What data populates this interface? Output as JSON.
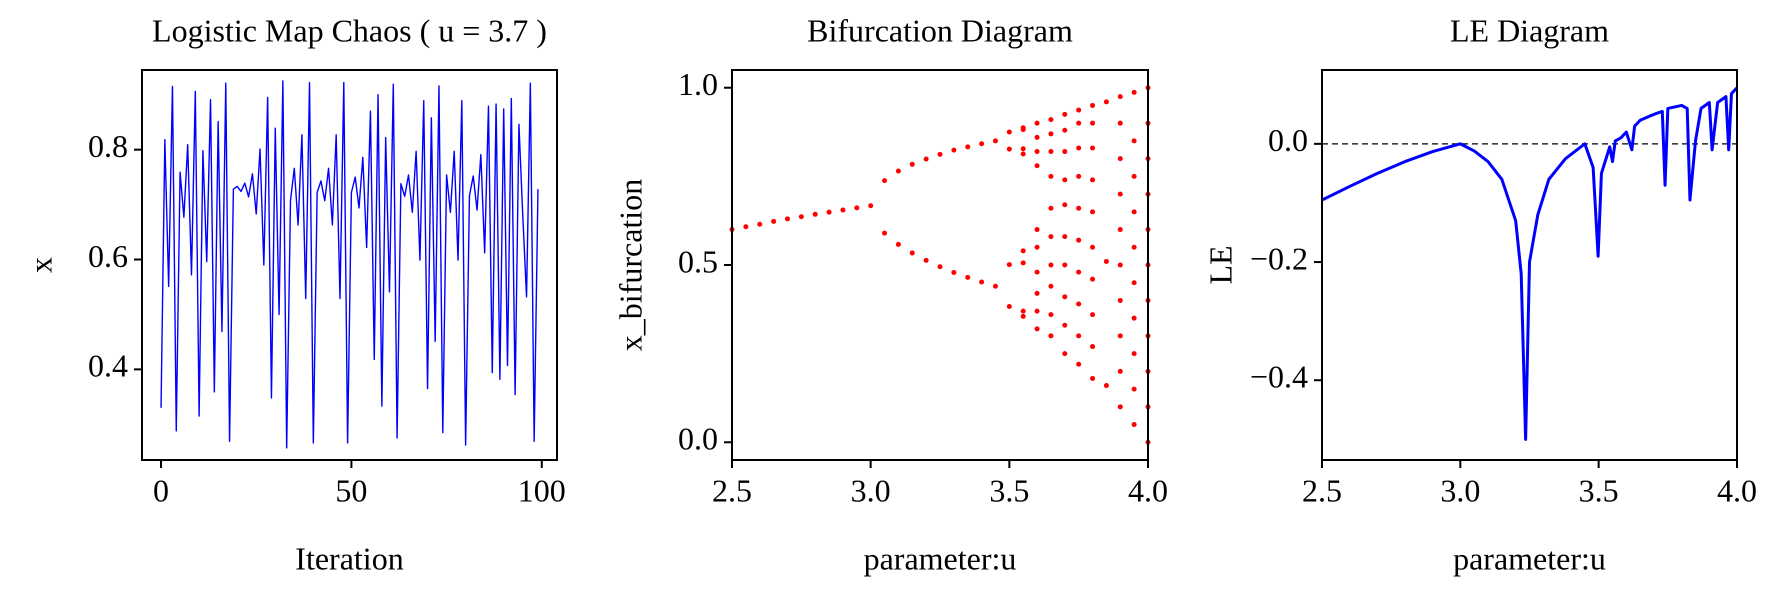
{
  "chart_data": [
    {
      "type": "line",
      "title": "Logistic Map Chaos ( u = 3.7 )",
      "xlabel": "Iteration",
      "ylabel": "x",
      "color": "#0000ff",
      "x": [
        0,
        1,
        2,
        3,
        4,
        5,
        6,
        7,
        8,
        9,
        10,
        11,
        12,
        13,
        14,
        15,
        16,
        17,
        18,
        19,
        20,
        21,
        22,
        23,
        24,
        25,
        26,
        27,
        28,
        29,
        30,
        31,
        32,
        33,
        34,
        35,
        36,
        37,
        38,
        39,
        40,
        41,
        42,
        43,
        44,
        45,
        46,
        47,
        48,
        49,
        50,
        51,
        52,
        53,
        54,
        55,
        56,
        57,
        58,
        59,
        60,
        61,
        62,
        63,
        64,
        65,
        66,
        67,
        68,
        69,
        70,
        71,
        72,
        73,
        74,
        75,
        76,
        77,
        78,
        79,
        80,
        81,
        82,
        83,
        84,
        85,
        86,
        87,
        88,
        89,
        90,
        91,
        92,
        93,
        94,
        95,
        96,
        97,
        98,
        99
      ],
      "values": [
        0.33,
        0.818,
        0.551,
        0.915,
        0.288,
        0.759,
        0.677,
        0.809,
        0.572,
        0.906,
        0.315,
        0.798,
        0.596,
        0.891,
        0.359,
        0.851,
        0.469,
        0.921,
        0.269,
        0.728,
        0.733,
        0.724,
        0.739,
        0.714,
        0.756,
        0.683,
        0.801,
        0.59,
        0.895,
        0.348,
        0.839,
        0.5,
        0.925,
        0.257,
        0.707,
        0.766,
        0.663,
        0.827,
        0.529,
        0.922,
        0.266,
        0.722,
        0.743,
        0.707,
        0.766,
        0.663,
        0.827,
        0.529,
        0.922,
        0.266,
        0.722,
        0.75,
        0.694,
        0.786,
        0.622,
        0.87,
        0.418,
        0.9,
        0.333,
        0.822,
        0.541,
        0.919,
        0.275,
        0.738,
        0.715,
        0.754,
        0.686,
        0.797,
        0.599,
        0.889,
        0.365,
        0.858,
        0.451,
        0.916,
        0.285,
        0.754,
        0.686,
        0.797,
        0.599,
        0.889,
        0.262,
        0.716,
        0.752,
        0.69,
        0.791,
        0.612,
        0.879,
        0.394,
        0.883,
        0.382,
        0.874,
        0.407,
        0.893,
        0.354,
        0.846,
        0.682,
        0.532,
        0.921,
        0.269,
        0.728
      ],
      "xlim": [
        -5,
        104
      ],
      "ylim": [
        0.235,
        0.945
      ],
      "xticks": [
        0,
        50,
        100
      ],
      "yticks": [
        0.4,
        0.6,
        0.8
      ]
    },
    {
      "type": "scatter",
      "title": "Bifurcation Diagram",
      "xlabel": "parameter:u",
      "ylabel": "x_bifurcation",
      "color": "#ff0000",
      "x": [
        2.5,
        2.55,
        2.6,
        2.65,
        2.7,
        2.75,
        2.8,
        2.85,
        2.9,
        2.95,
        3.0,
        3.05,
        3.05,
        3.1,
        3.1,
        3.15,
        3.15,
        3.2,
        3.2,
        3.25,
        3.25,
        3.3,
        3.3,
        3.35,
        3.35,
        3.4,
        3.4,
        3.45,
        3.45,
        3.5,
        3.5,
        3.5,
        3.5,
        3.55,
        3.55,
        3.55,
        3.55,
        3.55,
        3.55,
        3.55,
        3.55,
        3.6,
        3.6,
        3.6,
        3.6,
        3.6,
        3.6,
        3.6,
        3.6,
        3.6,
        3.6,
        3.65,
        3.65,
        3.65,
        3.65,
        3.65,
        3.65,
        3.65,
        3.65,
        3.65,
        3.65,
        3.7,
        3.7,
        3.7,
        3.7,
        3.7,
        3.7,
        3.7,
        3.7,
        3.7,
        3.7,
        3.75,
        3.75,
        3.75,
        3.75,
        3.75,
        3.75,
        3.75,
        3.75,
        3.75,
        3.75,
        3.8,
        3.8,
        3.8,
        3.8,
        3.8,
        3.8,
        3.8,
        3.8,
        3.8,
        3.8,
        3.85,
        3.85,
        3.85,
        3.9,
        3.9,
        3.9,
        3.9,
        3.9,
        3.9,
        3.9,
        3.9,
        3.9,
        3.9,
        3.95,
        3.95,
        3.95,
        3.95,
        3.95,
        3.95,
        3.95,
        3.95,
        3.95,
        3.95,
        4.0,
        4.0,
        4.0,
        4.0,
        4.0,
        4.0,
        4.0,
        4.0,
        4.0,
        4.0,
        4.0
      ],
      "values": [
        0.6,
        0.608,
        0.615,
        0.623,
        0.63,
        0.636,
        0.643,
        0.649,
        0.655,
        0.661,
        0.667,
        0.738,
        0.59,
        0.765,
        0.558,
        0.784,
        0.534,
        0.799,
        0.513,
        0.812,
        0.495,
        0.824,
        0.479,
        0.833,
        0.465,
        0.842,
        0.452,
        0.85,
        0.44,
        0.875,
        0.383,
        0.827,
        0.501,
        0.887,
        0.355,
        0.813,
        0.54,
        0.882,
        0.37,
        0.828,
        0.506,
        0.32,
        0.37,
        0.42,
        0.48,
        0.55,
        0.6,
        0.78,
        0.82,
        0.86,
        0.9,
        0.3,
        0.36,
        0.44,
        0.5,
        0.58,
        0.66,
        0.75,
        0.82,
        0.87,
        0.91,
        0.25,
        0.33,
        0.41,
        0.5,
        0.58,
        0.67,
        0.74,
        0.82,
        0.88,
        0.925,
        0.22,
        0.3,
        0.39,
        0.48,
        0.57,
        0.66,
        0.75,
        0.83,
        0.9,
        0.937,
        0.18,
        0.27,
        0.36,
        0.46,
        0.55,
        0.65,
        0.74,
        0.83,
        0.9,
        0.95,
        0.16,
        0.51,
        0.96,
        0.1,
        0.2,
        0.3,
        0.4,
        0.5,
        0.6,
        0.7,
        0.8,
        0.9,
        0.975,
        0.05,
        0.15,
        0.25,
        0.35,
        0.45,
        0.55,
        0.65,
        0.75,
        0.85,
        0.987,
        0,
        0.1,
        0.2,
        0.3,
        0.4,
        0.5,
        0.6,
        0.7,
        0.8,
        0.9,
        1
      ],
      "xlim": [
        2.5,
        4.0
      ],
      "ylim": [
        -0.05,
        1.05
      ],
      "xticks": [
        2.5,
        {
          "value": 3,
          "label": "3.0"
        },
        3.5,
        {
          "value": 4,
          "label": "4.0"
        }
      ],
      "yticks": [
        {
          "value": 0,
          "label": "0.0"
        },
        0.5,
        {
          "value": 1,
          "label": "1.0"
        }
      ]
    },
    {
      "type": "line",
      "title": "LE Diagram",
      "xlabel": "parameter:u",
      "ylabel": "LE",
      "color": "#0000ff",
      "hline": 0,
      "x": [
        2.5,
        2.6,
        2.7,
        2.8,
        2.9,
        3.0,
        3.05,
        3.1,
        3.15,
        3.2,
        3.22,
        3.236,
        3.25,
        3.28,
        3.32,
        3.38,
        3.45,
        3.48,
        3.498,
        3.51,
        3.54,
        3.55,
        3.56,
        3.58,
        3.6,
        3.62,
        3.63,
        3.65,
        3.7,
        3.73,
        3.74,
        3.75,
        3.8,
        3.82,
        3.83,
        3.85,
        3.87,
        3.9,
        3.91,
        3.93,
        3.96,
        3.97,
        3.98,
        4.0
      ],
      "values": [
        -0.095,
        -0.072,
        -0.05,
        -0.03,
        -0.013,
        0,
        -0.012,
        -0.03,
        -0.06,
        -0.13,
        -0.22,
        -0.5,
        -0.2,
        -0.12,
        -0.06,
        -0.025,
        0,
        -0.04,
        -0.19,
        -0.05,
        -0.005,
        -0.03,
        0.005,
        0.01,
        0.02,
        -0.01,
        0.03,
        0.04,
        0.05,
        0.055,
        -0.07,
        0.06,
        0.065,
        0.06,
        -0.095,
        0.005,
        0.06,
        0.07,
        -0.01,
        0.07,
        0.08,
        -0.01,
        0.085,
        0.095
      ],
      "xlim": [
        2.5,
        4.0
      ],
      "ylim": [
        -0.535,
        0.125
      ],
      "xticks": [
        2.5,
        {
          "value": 3,
          "label": "3.0"
        },
        3.5,
        {
          "value": 4,
          "label": "4.0"
        }
      ],
      "yticks": [
        {
          "value": -0.4,
          "label": "−0.4"
        },
        {
          "value": -0.2,
          "label": "−0.2"
        },
        {
          "value": 0,
          "label": "0.0"
        }
      ]
    }
  ]
}
